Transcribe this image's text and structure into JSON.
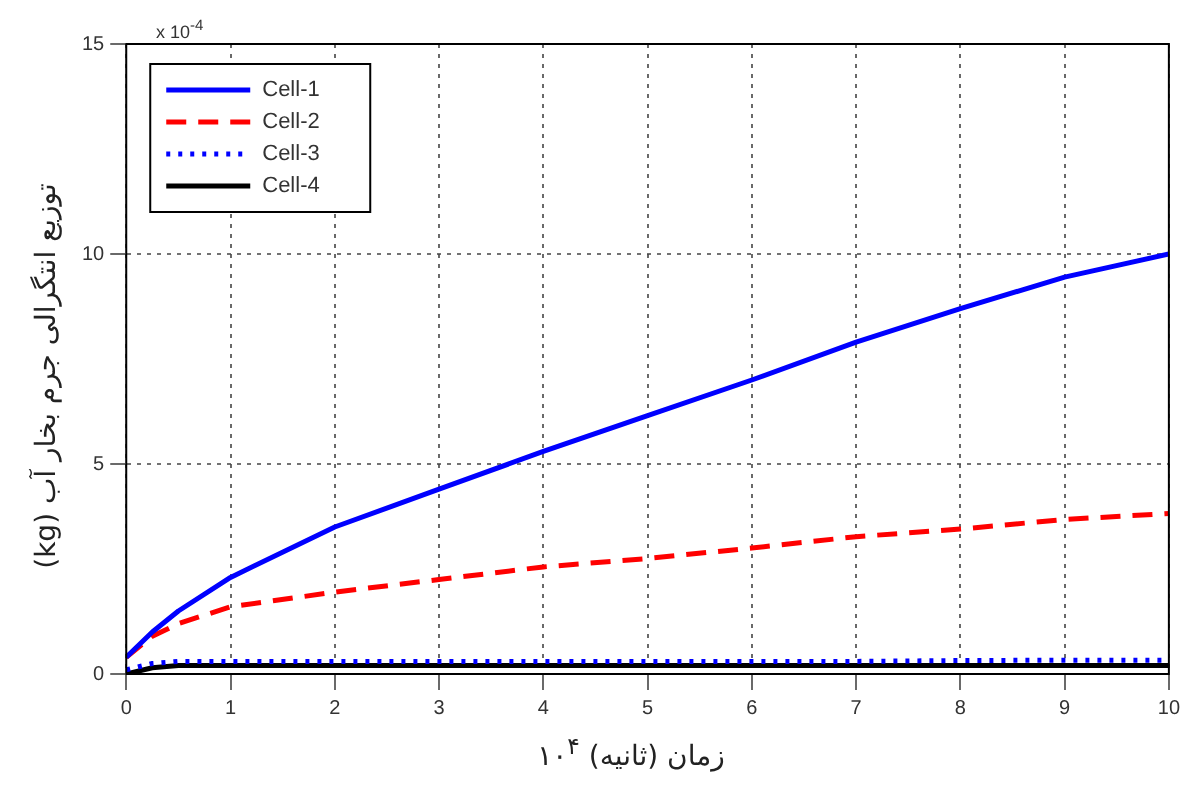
{
  "chart_data": {
    "type": "line",
    "xlabel": "زمان (ثانیه) ۱۰$^{۴}$",
    "ylabel": "توزیع انتگرالی جرم بخار آب (kg)",
    "annotations": [
      "x 10$^{-4}$"
    ],
    "x": [
      0,
      0.25,
      0.5,
      1,
      2,
      3,
      4,
      5,
      6,
      7,
      8,
      9,
      10
    ],
    "series": [
      {
        "name": "Cell-1",
        "color": "#0000ff",
        "line_style": "solid",
        "values": [
          0.4,
          1.0,
          1.5,
          2.3,
          3.5,
          4.4,
          5.3,
          6.15,
          7.0,
          7.9,
          8.7,
          9.45,
          10.0
        ]
      },
      {
        "name": "Cell-2",
        "color": "#ff0000",
        "line_style": "dashed",
        "values": [
          0.4,
          0.9,
          1.2,
          1.6,
          1.95,
          2.25,
          2.55,
          2.75,
          3.0,
          3.27,
          3.45,
          3.68,
          3.82
        ]
      },
      {
        "name": "Cell-3",
        "color": "#0000ff",
        "line_style": "dotted",
        "values": [
          0.1,
          0.25,
          0.3,
          0.3,
          0.3,
          0.3,
          0.3,
          0.3,
          0.3,
          0.3,
          0.32,
          0.33,
          0.33
        ]
      },
      {
        "name": "Cell-4",
        "color": "#000000",
        "line_style": "solid",
        "values": [
          0.0,
          0.15,
          0.2,
          0.2,
          0.2,
          0.2,
          0.2,
          0.2,
          0.2,
          0.2,
          0.2,
          0.2,
          0.2
        ]
      }
    ],
    "xlim": [
      0,
      10
    ],
    "xticks": [
      0,
      1,
      2,
      3,
      4,
      5,
      6,
      7,
      8,
      9,
      10
    ],
    "ylim": [
      0,
      15
    ],
    "yticks": [
      0,
      5,
      10,
      15
    ],
    "grid": true,
    "legend": "top left",
    "marker": "none"
  }
}
